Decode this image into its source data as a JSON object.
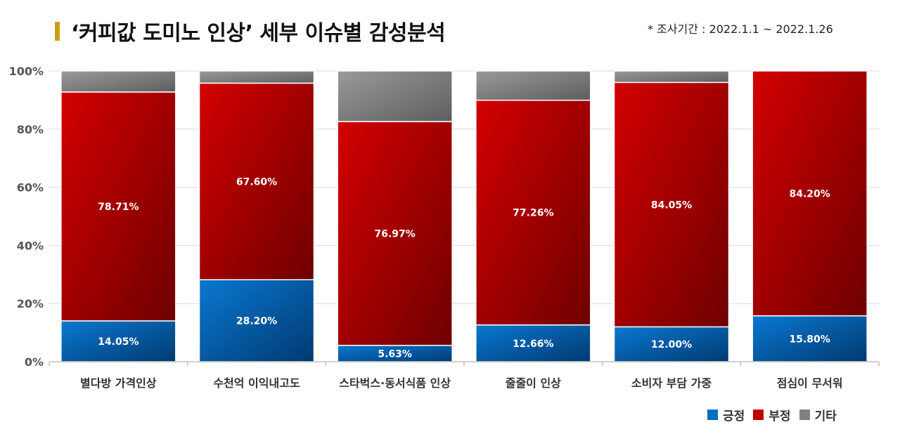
{
  "header": {
    "title": "‘커피값 도미노 인상’ 세부 이슈별 감성분석",
    "period": "* 조사기간 : 2022.1.1 ~ 2022.1.26"
  },
  "chart_data": {
    "type": "bar",
    "stacked": true,
    "normalized": true,
    "categories": [
      "별다방 가격인상",
      "수천억 이익내고도",
      "스타벅스·동서식품 인상",
      "줄줄이 인상",
      "소비자 부담 가중",
      "점심이 무서워"
    ],
    "series": [
      {
        "name": "긍정",
        "color": "#0070C0",
        "values": [
          14.05,
          28.2,
          5.63,
          12.66,
          12.0,
          15.8
        ],
        "labels": [
          "14.05%",
          "28.20%",
          "5.63%",
          "12.66%",
          "12.00%",
          "15.80%"
        ]
      },
      {
        "name": "부정",
        "color": "#C00000",
        "values": [
          78.71,
          67.6,
          76.97,
          77.26,
          84.05,
          84.2
        ],
        "labels": [
          "78.71%",
          "67.60%",
          "76.97%",
          "77.26%",
          "84.05%",
          "84.20%"
        ]
      },
      {
        "name": "기타",
        "color": "#808080",
        "values": [
          7.24,
          4.2,
          17.4,
          10.08,
          3.95,
          0
        ]
      }
    ],
    "ylim": [
      0,
      100
    ],
    "yticks": [
      "0%",
      "20%",
      "40%",
      "60%",
      "80%",
      "100%"
    ],
    "grid": true,
    "legend_position": "bottom-right"
  }
}
